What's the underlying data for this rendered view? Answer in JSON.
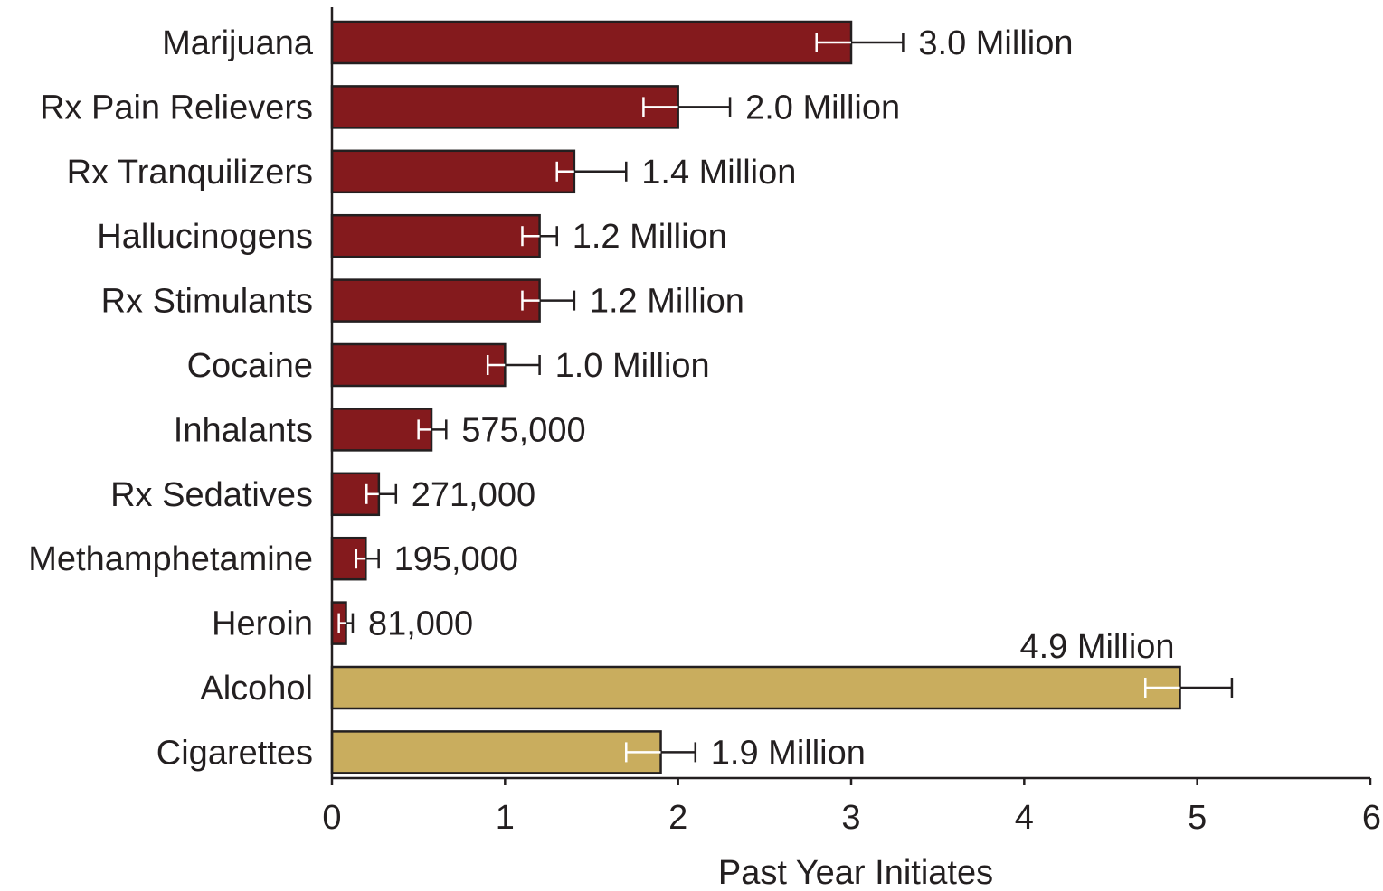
{
  "chart_data": {
    "type": "bar",
    "orientation": "horizontal",
    "title": "",
    "xlabel": "Past Year Initiates",
    "ylabel": "",
    "xlim": [
      0,
      6
    ],
    "xticks": [
      "0",
      "1",
      "2",
      "3",
      "4",
      "5",
      "6"
    ],
    "grid": false,
    "legend": "none",
    "colors": {
      "illicit": "#841a1d",
      "licit": "#c9ad5e",
      "axis": "#231f20",
      "text": "#231f20"
    },
    "bars": [
      {
        "category": "Marijuana",
        "value": 3.0,
        "err_low": 2.8,
        "err_high": 3.3,
        "label": "3.0 Million",
        "group": "illicit"
      },
      {
        "category": "Rx Pain Relievers",
        "value": 2.0,
        "err_low": 1.8,
        "err_high": 2.3,
        "label": "2.0 Million",
        "group": "illicit"
      },
      {
        "category": "Rx Tranquilizers",
        "value": 1.4,
        "err_low": 1.3,
        "err_high": 1.7,
        "label": "1.4 Million",
        "group": "illicit"
      },
      {
        "category": "Hallucinogens",
        "value": 1.2,
        "err_low": 1.1,
        "err_high": 1.3,
        "label": "1.2 Million",
        "group": "illicit"
      },
      {
        "category": "Rx Stimulants",
        "value": 1.2,
        "err_low": 1.1,
        "err_high": 1.4,
        "label": "1.2 Million",
        "group": "illicit"
      },
      {
        "category": "Cocaine",
        "value": 1.0,
        "err_low": 0.9,
        "err_high": 1.2,
        "label": "1.0 Million",
        "group": "illicit"
      },
      {
        "category": "Inhalants",
        "value": 0.575,
        "err_low": 0.5,
        "err_high": 0.66,
        "label": "575,000",
        "group": "illicit"
      },
      {
        "category": "Rx Sedatives",
        "value": 0.271,
        "err_low": 0.2,
        "err_high": 0.37,
        "label": "271,000",
        "group": "illicit"
      },
      {
        "category": "Methamphetamine",
        "value": 0.195,
        "err_low": 0.14,
        "err_high": 0.27,
        "label": "195,000",
        "group": "illicit"
      },
      {
        "category": "Heroin",
        "value": 0.081,
        "err_low": 0.04,
        "err_high": 0.12,
        "label": "81,000",
        "group": "illicit"
      },
      {
        "category": "Alcohol",
        "value": 4.9,
        "err_low": 4.7,
        "err_high": 5.2,
        "label": "4.9 Million",
        "group": "licit"
      },
      {
        "category": "Cigarettes",
        "value": 1.9,
        "err_low": 1.7,
        "err_high": 2.1,
        "label": "1.9 Million",
        "group": "licit"
      }
    ]
  }
}
